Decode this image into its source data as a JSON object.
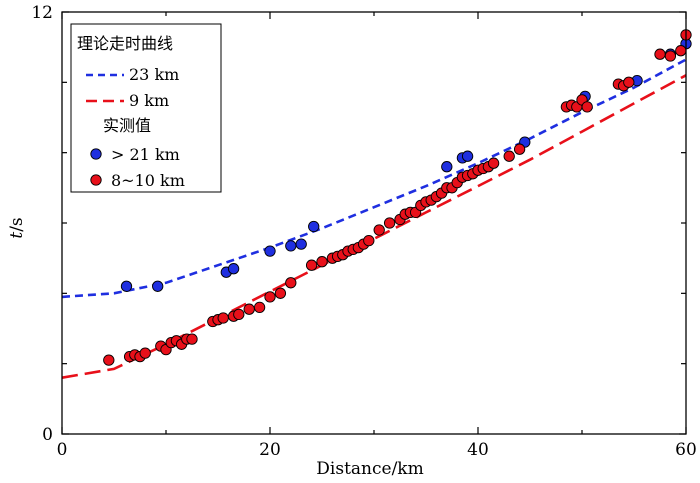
{
  "chart_data": {
    "type": "scatter",
    "xlabel": "Distance/km",
    "ylabel_italic": "t",
    "ylabel_unit": "/s",
    "xlim": [
      0,
      60
    ],
    "ylim": [
      0,
      12
    ],
    "x_ticks": [
      0,
      20,
      40,
      60
    ],
    "y_ticks": [
      0,
      12
    ],
    "legend": {
      "position": "top-left",
      "title_theory": "理论走时曲线",
      "title_observed": "实测值",
      "entries": {
        "curve_23": "23 km",
        "curve_9": "9 km",
        "obs_deep": "> 21 km",
        "obs_shallow": "8~10 km"
      }
    },
    "colors": {
      "blue": "#1f2fe0",
      "red": "#e8101a"
    },
    "curves": [
      {
        "name": "23 km",
        "color": "#1f2fe0",
        "dash": "short",
        "x": [
          0,
          5,
          10,
          15,
          20,
          25,
          30,
          35,
          40,
          45,
          50,
          55,
          60
        ],
        "y": [
          3.9,
          4.0,
          4.3,
          4.8,
          5.3,
          5.85,
          6.45,
          7.05,
          7.7,
          8.4,
          9.15,
          9.85,
          10.65
        ]
      },
      {
        "name": "9 km",
        "color": "#e8101a",
        "dash": "long",
        "x": [
          0,
          5,
          10,
          15,
          20,
          25,
          30,
          35,
          40,
          45,
          50,
          55,
          60
        ],
        "y": [
          1.6,
          1.85,
          2.55,
          3.3,
          4.05,
          4.8,
          5.55,
          6.3,
          7.05,
          7.8,
          8.6,
          9.4,
          10.2
        ]
      }
    ],
    "series": [
      {
        "name": "> 21 km",
        "color": "#1f2fe0",
        "x": [
          6.2,
          9.2,
          15.8,
          16.5,
          20.0,
          22.0,
          23.0,
          24.2,
          37.0,
          38.5,
          39.0,
          44.5,
          50.3,
          55.3,
          58.5,
          60.0
        ],
        "y": [
          4.2,
          4.2,
          4.6,
          4.7,
          5.2,
          5.35,
          5.4,
          5.9,
          7.6,
          7.85,
          7.9,
          8.3,
          9.6,
          10.05,
          10.8,
          11.1
        ]
      },
      {
        "name": "8~10 km",
        "color": "#e8101a",
        "x": [
          4.5,
          6.5,
          7.0,
          7.5,
          8.0,
          9.5,
          10.0,
          10.5,
          11.0,
          11.5,
          12.0,
          12.5,
          14.5,
          15.0,
          15.5,
          16.5,
          17.0,
          18.0,
          19.0,
          20.0,
          21.0,
          22.0,
          24.0,
          25.0,
          26.0,
          26.5,
          27.0,
          27.5,
          28.0,
          28.5,
          29.0,
          29.5,
          30.5,
          31.5,
          32.5,
          33.0,
          33.5,
          34.0,
          34.5,
          35.0,
          35.5,
          36.0,
          36.5,
          37.0,
          37.5,
          38.0,
          38.5,
          39.0,
          39.5,
          40.0,
          40.5,
          41.0,
          41.5,
          43.0,
          44.0,
          48.5,
          49.0,
          49.5,
          50.0,
          50.5,
          53.5,
          54.0,
          54.5,
          57.5,
          58.5,
          59.5,
          60.0
        ],
        "y": [
          2.1,
          2.2,
          2.25,
          2.2,
          2.3,
          2.5,
          2.4,
          2.6,
          2.65,
          2.55,
          2.7,
          2.7,
          3.2,
          3.25,
          3.3,
          3.35,
          3.4,
          3.55,
          3.6,
          3.9,
          4.0,
          4.3,
          4.8,
          4.9,
          5.0,
          5.05,
          5.1,
          5.2,
          5.25,
          5.3,
          5.4,
          5.5,
          5.8,
          6.0,
          6.1,
          6.25,
          6.3,
          6.3,
          6.5,
          6.6,
          6.65,
          6.75,
          6.85,
          7.0,
          7.0,
          7.15,
          7.3,
          7.35,
          7.4,
          7.5,
          7.55,
          7.6,
          7.7,
          7.9,
          8.1,
          9.3,
          9.35,
          9.3,
          9.5,
          9.3,
          9.95,
          9.9,
          10.0,
          10.8,
          10.75,
          10.9,
          11.35
        ]
      }
    ]
  }
}
